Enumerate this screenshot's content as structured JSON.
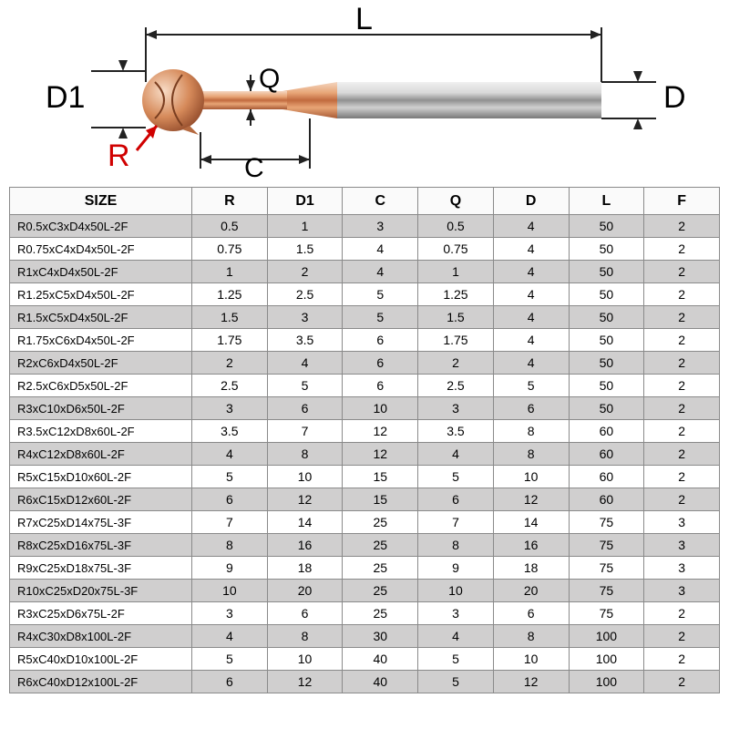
{
  "diagram": {
    "labels": {
      "L": "L",
      "D1": "D1",
      "R": "R",
      "C": "C",
      "Q": "Q",
      "D": "D"
    },
    "colors": {
      "label": "#000000",
      "r_label": "#d00000",
      "tool_tip_light": "#e8b89a",
      "tool_tip_dark": "#c47a4e",
      "shank_light": "#d8d8d8",
      "shank_mid": "#a8a8a8",
      "shank_dark": "#707070",
      "dim_line": "#222222"
    },
    "label_fontsize": 34
  },
  "table": {
    "columns": [
      "SIZE",
      "R",
      "D1",
      "C",
      "Q",
      "D",
      "L",
      "F"
    ],
    "rows": [
      [
        "R0.5xC3xD4x50L-2F",
        "0.5",
        "1",
        "3",
        "0.5",
        "4",
        "50",
        "2"
      ],
      [
        "R0.75xC4xD4x50L-2F",
        "0.75",
        "1.5",
        "4",
        "0.75",
        "4",
        "50",
        "2"
      ],
      [
        "R1xC4xD4x50L-2F",
        "1",
        "2",
        "4",
        "1",
        "4",
        "50",
        "2"
      ],
      [
        "R1.25xC5xD4x50L-2F",
        "1.25",
        "2.5",
        "5",
        "1.25",
        "4",
        "50",
        "2"
      ],
      [
        "R1.5xC5xD4x50L-2F",
        "1.5",
        "3",
        "5",
        "1.5",
        "4",
        "50",
        "2"
      ],
      [
        "R1.75xC6xD4x50L-2F",
        "1.75",
        "3.5",
        "6",
        "1.75",
        "4",
        "50",
        "2"
      ],
      [
        "R2xC6xD4x50L-2F",
        "2",
        "4",
        "6",
        "2",
        "4",
        "50",
        "2"
      ],
      [
        "R2.5xC6xD5x50L-2F",
        "2.5",
        "5",
        "6",
        "2.5",
        "5",
        "50",
        "2"
      ],
      [
        "R3xC10xD6x50L-2F",
        "3",
        "6",
        "10",
        "3",
        "6",
        "50",
        "2"
      ],
      [
        "R3.5xC12xD8x60L-2F",
        "3.5",
        "7",
        "12",
        "3.5",
        "8",
        "60",
        "2"
      ],
      [
        "R4xC12xD8x60L-2F",
        "4",
        "8",
        "12",
        "4",
        "8",
        "60",
        "2"
      ],
      [
        "R5xC15xD10x60L-2F",
        "5",
        "10",
        "15",
        "5",
        "10",
        "60",
        "2"
      ],
      [
        "R6xC15xD12x60L-2F",
        "6",
        "12",
        "15",
        "6",
        "12",
        "60",
        "2"
      ],
      [
        "R7xC25xD14x75L-3F",
        "7",
        "14",
        "25",
        "7",
        "14",
        "75",
        "3"
      ],
      [
        "R8xC25xD16x75L-3F",
        "8",
        "16",
        "25",
        "8",
        "16",
        "75",
        "3"
      ],
      [
        "R9xC25xD18x75L-3F",
        "9",
        "18",
        "25",
        "9",
        "18",
        "75",
        "3"
      ],
      [
        "R10xC25xD20x75L-3F",
        "10",
        "20",
        "25",
        "10",
        "20",
        "75",
        "3"
      ],
      [
        "R3xC25xD6x75L-2F",
        "3",
        "6",
        "25",
        "3",
        "6",
        "75",
        "2"
      ],
      [
        "R4xC30xD8x100L-2F",
        "4",
        "8",
        "30",
        "4",
        "8",
        "100",
        "2"
      ],
      [
        "R5xC40xD10x100L-2F",
        "5",
        "10",
        "40",
        "5",
        "10",
        "100",
        "2"
      ],
      [
        "R6xC40xD12x100L-2F",
        "6",
        "12",
        "40",
        "5",
        "12",
        "100",
        "2"
      ]
    ],
    "header_bg": "#fafafa",
    "row_odd_bg": "#d0cfcf",
    "row_even_bg": "#ffffff",
    "border_color": "#8a8a8a",
    "header_fontsize": 16,
    "cell_fontsize": 14
  }
}
